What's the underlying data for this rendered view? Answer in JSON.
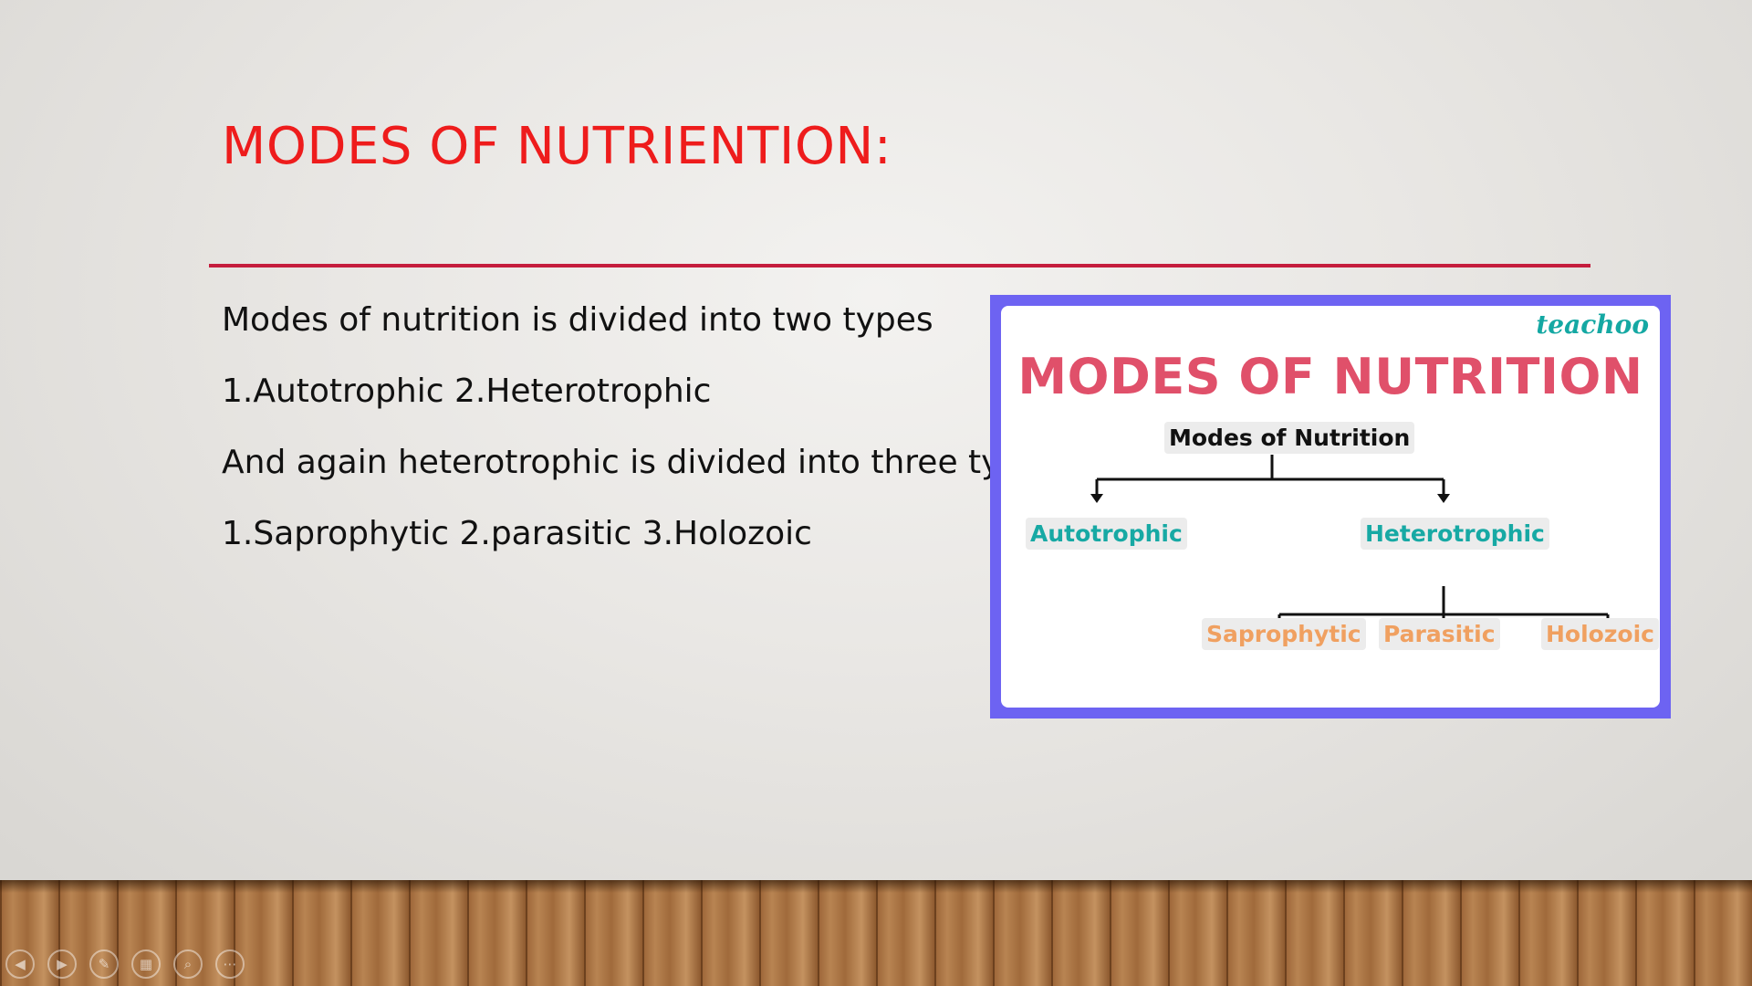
{
  "slide": {
    "title": "MODES OF NUTRIENTION:",
    "paragraphs": [
      "Modes of nutrition is divided into two types",
      "1.Autotrophic 2.Heterotrophic",
      "And again heterotrophic is divided into three types",
      "1.Saprophytic 2.parasitic 3.Holozoic"
    ],
    "colors": {
      "title": "#ee1c1c",
      "rule": "#c51d3d",
      "card_border": "#6d63f2"
    }
  },
  "image": {
    "logo": "teachoo",
    "title": "MODES OF NUTRITION",
    "root": "Modes of Nutrition",
    "level1": [
      "Autotrophic",
      "Heterotrophic"
    ],
    "level2": [
      "Saprophytic",
      "Parasitic",
      "Holozoic"
    ],
    "colors": {
      "title": "#e0506a",
      "level1": "#17a9a4",
      "level2": "#f0a060",
      "logo": "#14a8a3"
    }
  },
  "controls": [
    {
      "name": "previous-icon",
      "glyph": "◀"
    },
    {
      "name": "next-icon",
      "glyph": "▶"
    },
    {
      "name": "pen-icon",
      "glyph": "✎"
    },
    {
      "name": "slides-grid-icon",
      "glyph": "▦"
    },
    {
      "name": "zoom-icon",
      "glyph": "⌕"
    },
    {
      "name": "more-options-icon",
      "glyph": "⋯"
    }
  ]
}
